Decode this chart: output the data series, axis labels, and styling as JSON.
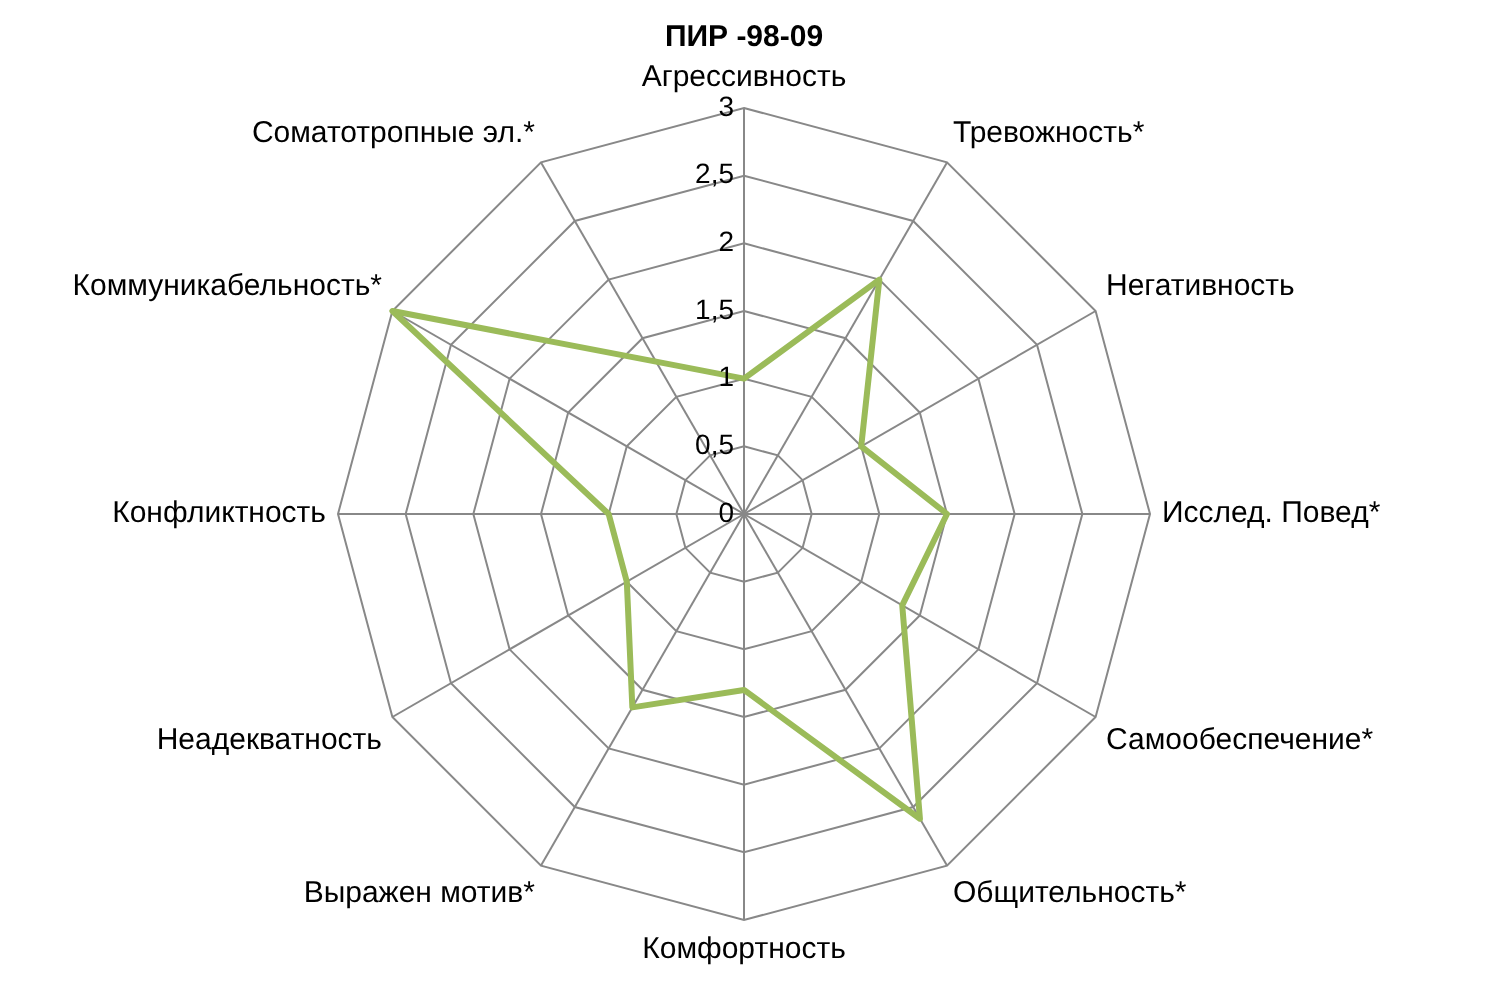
{
  "chart_data": {
    "type": "radar",
    "title": "ПИР -98-09",
    "categories": [
      "Агрессивность",
      "Тревожность*",
      "Негативность",
      "Исслед. Повед*",
      "Самообеспечение*",
      "Общительность*",
      "Комфортность",
      "Выражен мотив*",
      "Неадекватность",
      "Конфликтность",
      "Коммуникабельность*",
      "Соматотропные эл.*"
    ],
    "series": [
      {
        "color": "#9bbb59",
        "values": [
          1,
          2,
          1,
          1.5,
          1.35,
          2.6,
          1.3,
          1.65,
          1,
          1,
          3,
          1.3
        ]
      }
    ],
    "ylim": [
      0,
      3
    ],
    "yticks": [
      0,
      {
        "value": 0.5,
        "label": "0,5"
      },
      1,
      {
        "value": 1.5,
        "label": "1,5"
      },
      2,
      {
        "value": 2.5,
        "label": "2,5"
      },
      3
    ],
    "grid": true,
    "legend": false,
    "marker": "none"
  }
}
